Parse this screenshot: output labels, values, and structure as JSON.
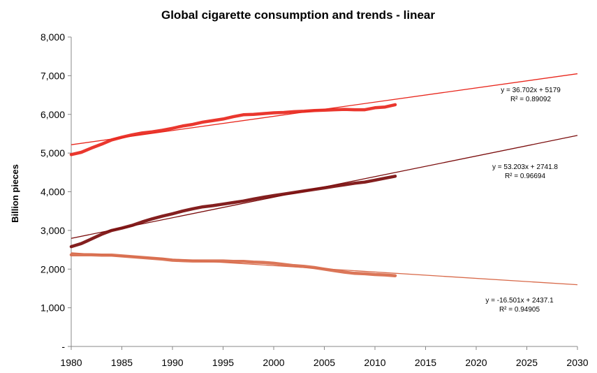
{
  "chart_data": {
    "type": "line",
    "title": "Global cigarette consumption and trends - linear",
    "xlabel": "",
    "ylabel": "Billion pieces",
    "xlim": [
      1980,
      2030
    ],
    "ylim": [
      0,
      8000
    ],
    "x_ticks": [
      "1980",
      "1985",
      "1990",
      "1995",
      "2000",
      "2005",
      "2010",
      "2015",
      "2020",
      "2025",
      "2030"
    ],
    "y_ticks": [
      "-",
      "1,000",
      "2,000",
      "3,000",
      "4,000",
      "5,000",
      "6,000",
      "7,000",
      "8,000"
    ],
    "grid": false,
    "series": [
      {
        "color": "#e8261c",
        "x": [
          1980,
          1981,
          1982,
          1983,
          1984,
          1985,
          1986,
          1987,
          1988,
          1989,
          1990,
          1991,
          1992,
          1993,
          1994,
          1995,
          1996,
          1997,
          1998,
          1999,
          2000,
          2001,
          2002,
          2003,
          2004,
          2005,
          2006,
          2007,
          2008,
          2009,
          2010,
          2011,
          2012
        ],
        "y": [
          4960,
          5020,
          5130,
          5230,
          5340,
          5410,
          5470,
          5520,
          5550,
          5590,
          5640,
          5700,
          5740,
          5800,
          5840,
          5880,
          5940,
          5990,
          6000,
          6020,
          6040,
          6050,
          6070,
          6080,
          6100,
          6110,
          6120,
          6130,
          6120,
          6120,
          6170,
          6190,
          6250
        ],
        "trendline": {
          "slope": 36.702,
          "intercept": 5179,
          "x_range": [
            1980,
            2030
          ],
          "equation": "y = 36.702x + 5179",
          "r2": "R² = 0.89092"
        }
      },
      {
        "color": "#7a0c0c",
        "x": [
          1980,
          1981,
          1982,
          1983,
          1984,
          1985,
          1986,
          1987,
          1988,
          1989,
          1990,
          1991,
          1992,
          1993,
          1994,
          1995,
          1996,
          1997,
          1998,
          1999,
          2000,
          2001,
          2002,
          2003,
          2004,
          2005,
          2006,
          2007,
          2008,
          2009,
          2010,
          2011,
          2012
        ],
        "y": [
          2580,
          2660,
          2780,
          2900,
          3000,
          3060,
          3130,
          3220,
          3300,
          3370,
          3430,
          3500,
          3560,
          3610,
          3640,
          3680,
          3720,
          3760,
          3810,
          3860,
          3900,
          3940,
          3980,
          4020,
          4060,
          4100,
          4140,
          4180,
          4220,
          4250,
          4300,
          4350,
          4400
        ],
        "trendline": {
          "slope": 53.203,
          "intercept": 2741.8,
          "x_range": [
            1980,
            2030
          ],
          "equation": "y = 53.203x + 2741.8",
          "r2": "R² = 0.96694"
        }
      },
      {
        "color": "#d86a4a",
        "x": [
          1980,
          1981,
          1982,
          1983,
          1984,
          1985,
          1986,
          1987,
          1988,
          1989,
          1990,
          1991,
          1992,
          1993,
          1994,
          1995,
          1996,
          1997,
          1998,
          1999,
          2000,
          2001,
          2002,
          2003,
          2004,
          2005,
          2006,
          2007,
          2008,
          2009,
          2010,
          2011,
          2012
        ],
        "y": [
          2370,
          2370,
          2370,
          2360,
          2360,
          2340,
          2320,
          2300,
          2280,
          2260,
          2230,
          2220,
          2210,
          2210,
          2210,
          2210,
          2200,
          2200,
          2180,
          2170,
          2150,
          2120,
          2090,
          2070,
          2040,
          2000,
          1960,
          1920,
          1890,
          1880,
          1860,
          1850,
          1830
        ],
        "trendline": {
          "slope": -16.501,
          "intercept": 2437.1,
          "x_range": [
            1980,
            2030
          ],
          "equation": "y = -16.501x + 2437.1",
          "r2": "R² = 0.94905"
        }
      }
    ]
  }
}
